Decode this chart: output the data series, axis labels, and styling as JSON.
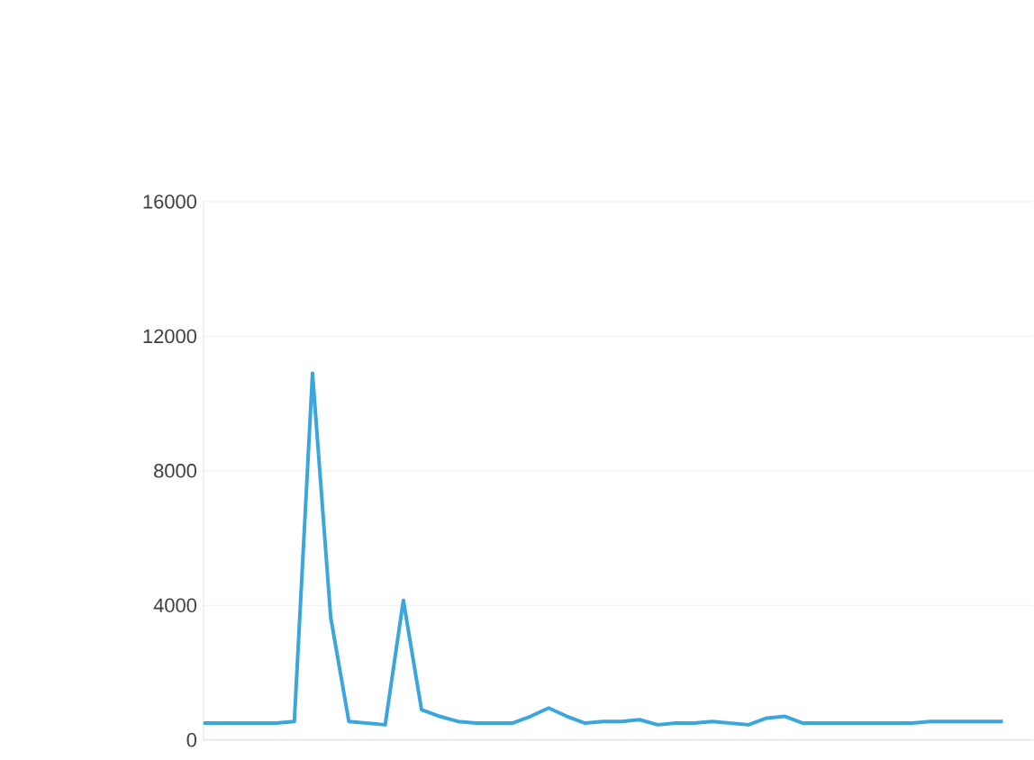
{
  "chart_data": {
    "type": "line",
    "categories": [
      null,
      null,
      null,
      null,
      null,
      null,
      null,
      null,
      null,
      null,
      null,
      null,
      null,
      null,
      null,
      null,
      null,
      null,
      null,
      null,
      null,
      null,
      null,
      null,
      null,
      null,
      null,
      null,
      null,
      null,
      null,
      null,
      null,
      null,
      null,
      null,
      null,
      null,
      null,
      null,
      null,
      null,
      null,
      null,
      null
    ],
    "series": [
      {
        "color": "#3aa6dd",
        "values": [
          500,
          500,
          500,
          500,
          500,
          550,
          10900,
          3650,
          550,
          500,
          450,
          4150,
          900,
          700,
          550,
          500,
          500,
          500,
          700,
          950,
          700,
          500,
          550,
          550,
          600,
          450,
          500,
          500,
          550,
          500,
          450,
          650,
          700,
          500,
          500,
          500,
          500,
          500,
          500,
          500,
          550,
          550,
          550,
          550,
          550
        ]
      }
    ],
    "ylim": [
      0,
      16000
    ],
    "yticks": [
      0,
      4000,
      8000,
      12000,
      16000
    ],
    "grid": "y",
    "tick_labels": "y",
    "marker": "none",
    "line_style": "solid"
  }
}
